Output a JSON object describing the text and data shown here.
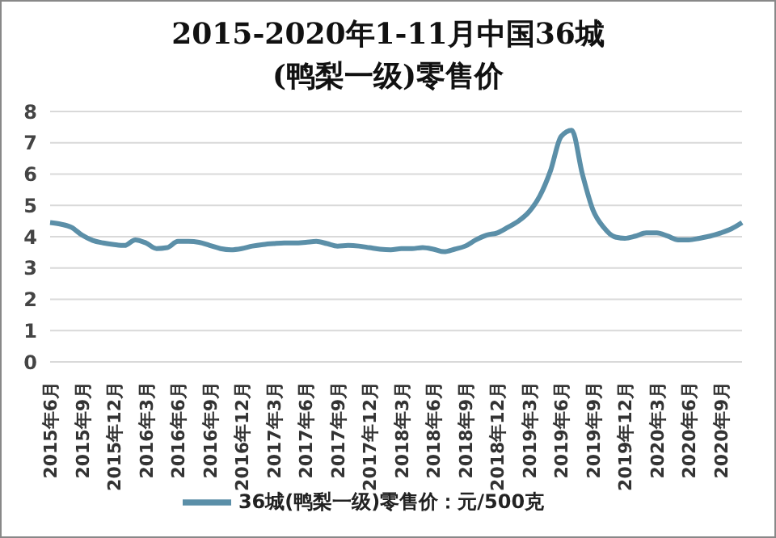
{
  "chart_data": {
    "type": "line",
    "title": "2015-2020年1-11月中国36城(鸭梨一级)零售价",
    "categories": [
      "2015年6月",
      null,
      null,
      "2015年9月",
      null,
      null,
      "2015年12月",
      null,
      null,
      "2016年3月",
      null,
      null,
      "2016年6月",
      null,
      null,
      "2016年9月",
      null,
      null,
      "2016年12月",
      null,
      null,
      "2017年3月",
      null,
      null,
      "2017年6月",
      null,
      null,
      "2017年9月",
      null,
      null,
      "2017年12月",
      null,
      null,
      "2018年3月",
      null,
      null,
      "2018年6月",
      null,
      null,
      "2018年9月",
      null,
      null,
      "2018年12月",
      null,
      null,
      "2019年3月",
      null,
      null,
      "2019年6月",
      null,
      null,
      "2019年9月",
      null,
      null,
      "2019年12月",
      null,
      null,
      "2020年3月",
      null,
      null,
      "2020年6月",
      null,
      null,
      "2020年9月",
      null,
      null
    ],
    "series": [
      {
        "name": "36城(鸭梨一级)零售价：元/500克",
        "color": "#5b8fa8",
        "values": [
          4.45,
          4.4,
          4.3,
          4.05,
          3.88,
          3.8,
          3.75,
          3.72,
          3.9,
          3.8,
          3.62,
          3.65,
          3.85,
          3.85,
          3.82,
          3.72,
          3.62,
          3.58,
          3.62,
          3.7,
          3.75,
          3.78,
          3.8,
          3.8,
          3.82,
          3.85,
          3.78,
          3.7,
          3.72,
          3.7,
          3.65,
          3.6,
          3.58,
          3.62,
          3.62,
          3.65,
          3.6,
          3.52,
          3.6,
          3.7,
          3.9,
          4.05,
          4.12,
          4.3,
          4.5,
          4.8,
          5.3,
          6.1,
          7.2,
          7.4,
          6.0,
          4.85,
          4.3,
          4.0,
          3.95,
          4.02,
          4.12,
          4.12,
          4.02,
          3.9,
          3.9,
          3.95,
          4.02,
          4.12,
          4.25,
          4.45
        ]
      }
    ],
    "ylim": [
      0,
      8
    ],
    "yticks": [
      0,
      1,
      2,
      3,
      4,
      5,
      6,
      7,
      8
    ],
    "grid": "y",
    "legend": "bottom",
    "marker": "none",
    "line_style": "solid"
  }
}
